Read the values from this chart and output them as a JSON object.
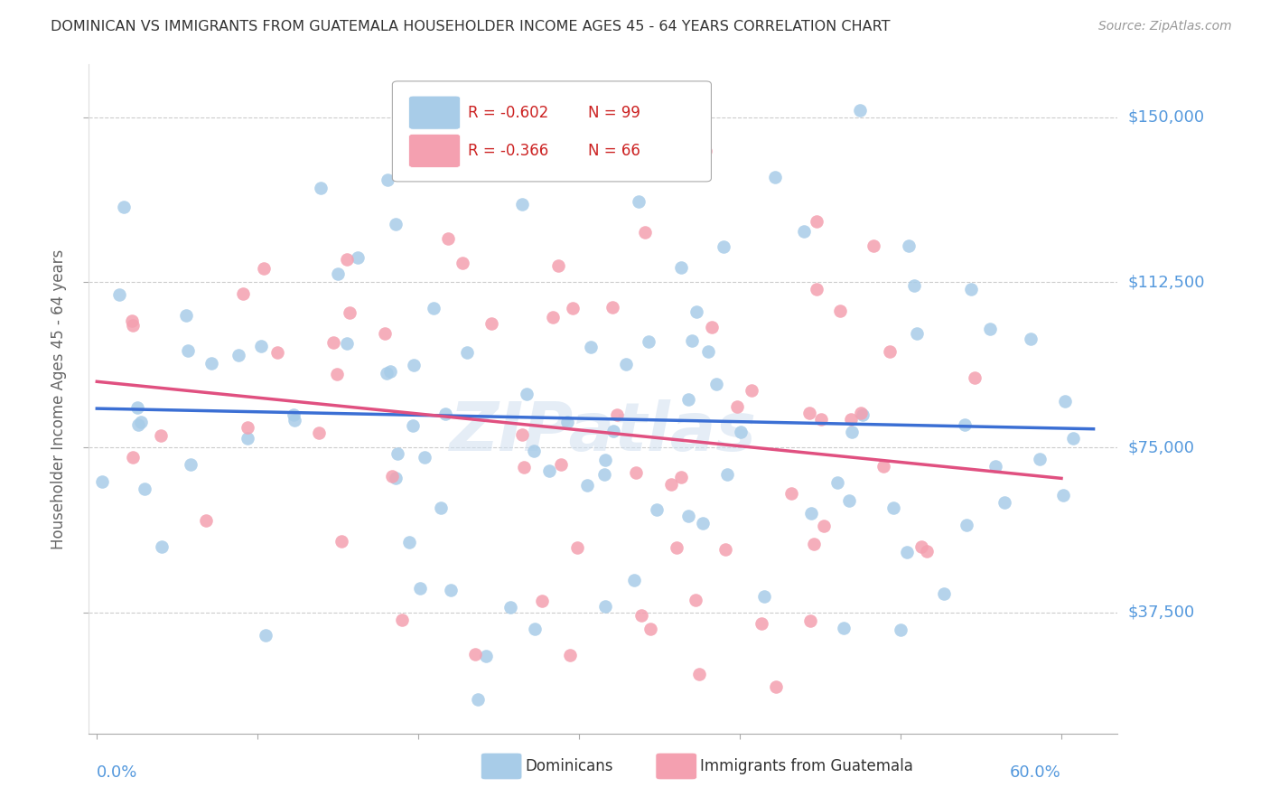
{
  "title": "DOMINICAN VS IMMIGRANTS FROM GUATEMALA HOUSEHOLDER INCOME AGES 45 - 64 YEARS CORRELATION CHART",
  "source": "Source: ZipAtlas.com",
  "ylabel": "Householder Income Ages 45 - 64 years",
  "ytick_labels": [
    "$37,500",
    "$75,000",
    "$112,500",
    "$150,000"
  ],
  "ytick_values": [
    37500,
    75000,
    112500,
    150000
  ],
  "ymin": 10000,
  "ymax": 162000,
  "xmin": -0.005,
  "xmax": 0.635,
  "legend1_label_r": "R = -0.602",
  "legend1_label_n": "N = 99",
  "legend2_label_r": "R = -0.366",
  "legend2_label_n": "N = 66",
  "legend1_color": "#a8cce8",
  "legend2_color": "#f4a0b0",
  "trendline1_color": "#3b6fd4",
  "trendline2_color": "#e05080",
  "scatter1_color": "#a8cce8",
  "scatter2_color": "#f4a0b0",
  "background_color": "#ffffff",
  "grid_color": "#cccccc",
  "title_color": "#333333",
  "axis_label_color": "#5599dd",
  "watermark": "ZIPatlas",
  "dominicans_label": "Dominicans",
  "guatemala_label": "Immigrants from Guatemala",
  "R1": -0.602,
  "N1": 99,
  "R2": -0.366,
  "N2": 66
}
